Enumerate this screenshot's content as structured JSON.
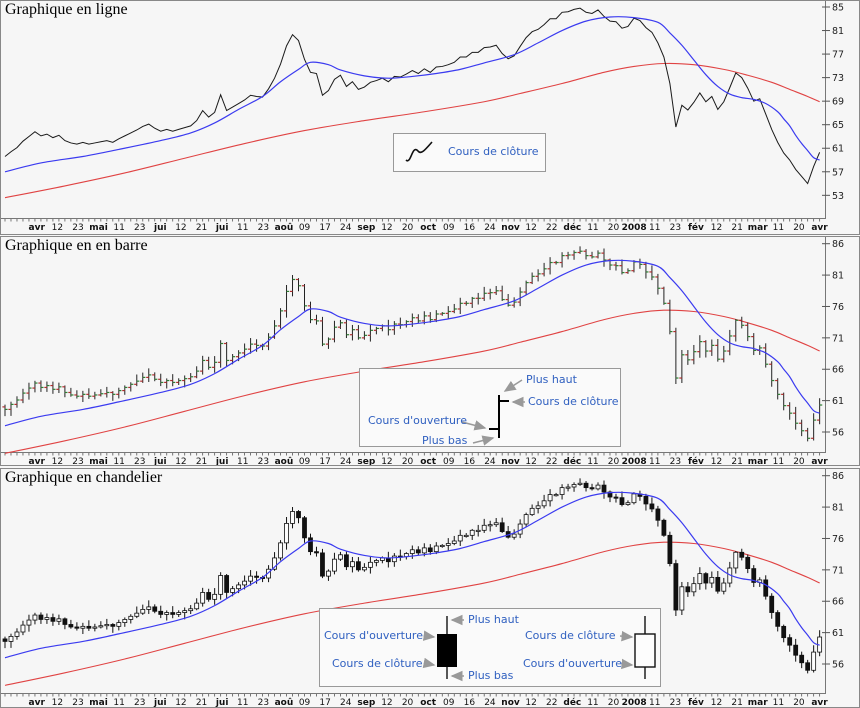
{
  "page": {
    "background": "#f6f6f6"
  },
  "colors": {
    "price": "#1a1a1a",
    "ma_short": "#3b3bf0",
    "ma_long": "#e04343",
    "open_tick": "#b03030",
    "close_tick": "#2e7d32",
    "legend_text": "#3060c0",
    "arrow": "#999999",
    "axis": "#777777"
  },
  "chart_data": {
    "type": [
      "line",
      "ohlc-bar",
      "candlestick"
    ],
    "x_tick_labels": [
      "avr",
      "12",
      "23",
      "mai",
      "11",
      "23",
      "jui",
      "12",
      "21",
      "jui",
      "11",
      "23",
      "aoû",
      "09",
      "17",
      "24",
      "sep",
      "12",
      "20",
      "oct",
      "09",
      "16",
      "24",
      "nov",
      "12",
      "22",
      "déc",
      "11",
      "20",
      "2008",
      "11",
      "23",
      "fév",
      "12",
      "21",
      "mar",
      "11",
      "20",
      "avr"
    ],
    "x_label_emphasis": [
      0,
      3,
      6,
      9,
      12,
      16,
      19,
      23,
      26,
      29,
      32,
      35,
      38
    ],
    "close": [
      59.6,
      60.4,
      61.1,
      62.2,
      63.0,
      63.8,
      63.1,
      63.4,
      62.8,
      63.2,
      62.3,
      61.9,
      61.7,
      62.0,
      61.7,
      61.9,
      62.1,
      62.3,
      62.0,
      62.6,
      63.1,
      63.6,
      64.1,
      64.7,
      65.1,
      64.4,
      63.9,
      64.2,
      63.9,
      64.2,
      64.5,
      64.8,
      65.7,
      67.4,
      66.3,
      67.1,
      70.1,
      67.4,
      68.0,
      68.6,
      69.2,
      70.0,
      69.8,
      69.7,
      71.1,
      72.9,
      75.3,
      78.4,
      80.3,
      79.3,
      76.1,
      73.9,
      73.7,
      70.0,
      70.8,
      72.7,
      73.4,
      71.5,
      72.3,
      71.0,
      71.4,
      72.2,
      72.5,
      72.9,
      72.3,
      73.2,
      73.1,
      73.6,
      74.2,
      73.7,
      74.5,
      73.9,
      74.8,
      74.9,
      75.2,
      75.6,
      76.5,
      76.5,
      77.3,
      77.3,
      78.1,
      78.2,
      78.5,
      77.1,
      76.2,
      76.7,
      78.3,
      79.8,
      80.8,
      81.2,
      82.0,
      83.0,
      83.0,
      84.1,
      84.2,
      84.6,
      84.8,
      84.1,
      83.9,
      84.5,
      83.4,
      82.6,
      82.5,
      81.4,
      81.7,
      83.1,
      82.7,
      81.5,
      80.7,
      78.9,
      76.5,
      72.0,
      64.6,
      68.3,
      67.5,
      68.8,
      70.4,
      68.9,
      69.8,
      67.6,
      68.9,
      71.3,
      73.8,
      73.0,
      71.2,
      69.0,
      69.4,
      66.8,
      64.2,
      62.0,
      60.2,
      59.0,
      57.4,
      56.2,
      55.0,
      57.9,
      60.3
    ],
    "ma_short_blue": [
      [
        0,
        57.0
      ],
      [
        6,
        58.5
      ],
      [
        13,
        59.6
      ],
      [
        19,
        60.8
      ],
      [
        26,
        62.3
      ],
      [
        31,
        63.6
      ],
      [
        35,
        65.3
      ],
      [
        39,
        67.6
      ],
      [
        43,
        69.8
      ],
      [
        46,
        72.3
      ],
      [
        49,
        74.4
      ],
      [
        51,
        75.6
      ],
      [
        54,
        75.2
      ],
      [
        56,
        74.3
      ],
      [
        60,
        73.3
      ],
      [
        64,
        72.9
      ],
      [
        68,
        73.2
      ],
      [
        72,
        73.7
      ],
      [
        76,
        74.4
      ],
      [
        80,
        75.5
      ],
      [
        85,
        76.9
      ],
      [
        89,
        78.9
      ],
      [
        93,
        81.0
      ],
      [
        97,
        82.6
      ],
      [
        101,
        83.3
      ],
      [
        105,
        83.2
      ],
      [
        109,
        82.4
      ],
      [
        111,
        80.6
      ],
      [
        113,
        78.5
      ],
      [
        115,
        76.0
      ],
      [
        117,
        73.5
      ],
      [
        119,
        71.5
      ],
      [
        121,
        70.2
      ],
      [
        123,
        69.6
      ],
      [
        125,
        69.3
      ],
      [
        127,
        68.6
      ],
      [
        129,
        67.2
      ],
      [
        130,
        66.0
      ],
      [
        131,
        64.8
      ],
      [
        132,
        63.2
      ],
      [
        133,
        61.8
      ],
      [
        134,
        60.6
      ],
      [
        135,
        59.4
      ],
      [
        136,
        59.0
      ]
    ],
    "ma_long_red": [
      [
        0,
        52.6
      ],
      [
        10,
        54.6
      ],
      [
        20,
        56.8
      ],
      [
        30,
        59.3
      ],
      [
        40,
        61.8
      ],
      [
        50,
        64.0
      ],
      [
        60,
        65.7
      ],
      [
        70,
        67.2
      ],
      [
        80,
        68.9
      ],
      [
        86,
        70.3
      ],
      [
        93,
        72.0
      ],
      [
        100,
        73.9
      ],
      [
        105,
        74.9
      ],
      [
        110,
        75.4
      ],
      [
        115,
        75.2
      ],
      [
        120,
        74.4
      ],
      [
        124,
        73.4
      ],
      [
        128,
        72.2
      ],
      [
        131,
        71.0
      ],
      [
        134,
        69.8
      ],
      [
        136,
        68.9
      ]
    ],
    "panels": [
      {
        "type": "line",
        "title": "Graphique en ligne",
        "y_ticks": [
          85,
          81,
          77,
          73,
          69,
          65,
          61,
          57,
          53
        ],
        "legend": {
          "close": "Cours de clôture"
        }
      },
      {
        "type": "ohlc",
        "title": "Graphique en en barre",
        "y_ticks": [
          86,
          81,
          76,
          71,
          66,
          61,
          56
        ],
        "legend": {
          "high": "Plus haut",
          "close": "Cours de clôture",
          "open": "Cours d'ouverture",
          "low": "Plus bas"
        }
      },
      {
        "type": "candle",
        "title": "Graphique en chandelier",
        "y_ticks": [
          86,
          81,
          76,
          71,
          66,
          61,
          56
        ],
        "legend": {
          "high": "Plus haut",
          "open_bear": "Cours d'ouverture",
          "close_bear": "Cours de clôture",
          "low": "Plus bas",
          "close_bull": "Cours de clôture",
          "open_bull": "Cours d'ouverture"
        }
      }
    ]
  }
}
